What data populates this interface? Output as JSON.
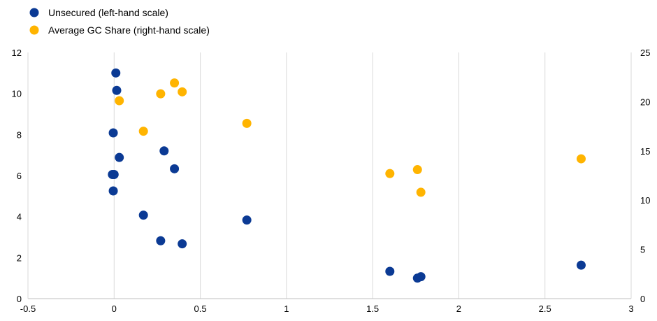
{
  "chart_data": {
    "type": "scatter",
    "legend_position": "top-left",
    "grid": "vertical",
    "x_axis": {
      "min": -0.5,
      "max": 3,
      "ticks": [
        -0.5,
        0,
        0.5,
        1,
        1.5,
        2,
        2.5,
        3
      ],
      "tick_labels": [
        "-0.5",
        "0",
        "0.5",
        "1",
        "1.5",
        "2",
        "2.5",
        "3"
      ]
    },
    "y_left": {
      "min": 0,
      "max": 12,
      "ticks": [
        0,
        2,
        4,
        6,
        8,
        10,
        12
      ],
      "tick_labels": [
        "0",
        "2",
        "4",
        "6",
        "8",
        "10",
        "12"
      ]
    },
    "y_right": {
      "min": 0,
      "max": 25,
      "ticks": [
        0,
        5,
        10,
        15,
        20,
        25
      ],
      "tick_labels": [
        "0",
        "5",
        "10",
        "15",
        "20",
        "25"
      ]
    },
    "series": [
      {
        "name": "Unsecured (left-hand scale)",
        "axis": "left",
        "color": "#0b3a94",
        "points": [
          {
            "x": 0.01,
            "y": 11.0
          },
          {
            "x": 0.015,
            "y": 10.15
          },
          {
            "x": -0.005,
            "y": 8.08
          },
          {
            "x": 0.03,
            "y": 6.88
          },
          {
            "x": -0.01,
            "y": 6.05
          },
          {
            "x": 0.0,
            "y": 6.05
          },
          {
            "x": -0.005,
            "y": 5.25
          },
          {
            "x": 0.29,
            "y": 7.2
          },
          {
            "x": 0.35,
            "y": 6.33
          },
          {
            "x": 0.17,
            "y": 4.07
          },
          {
            "x": 0.27,
            "y": 2.82
          },
          {
            "x": 0.395,
            "y": 2.67
          },
          {
            "x": 0.77,
            "y": 3.83
          },
          {
            "x": 1.6,
            "y": 1.33
          },
          {
            "x": 1.76,
            "y": 1.0
          },
          {
            "x": 1.78,
            "y": 1.07
          },
          {
            "x": 2.71,
            "y": 1.63
          }
        ]
      },
      {
        "name": "Average GC Share (right-hand scale)",
        "axis": "right",
        "color": "#ffb400",
        "points": [
          {
            "x": 0.03,
            "y": 20.1
          },
          {
            "x": 0.27,
            "y": 20.8
          },
          {
            "x": 0.35,
            "y": 21.9
          },
          {
            "x": 0.395,
            "y": 21.0
          },
          {
            "x": 0.17,
            "y": 17.0
          },
          {
            "x": 0.77,
            "y": 17.8
          },
          {
            "x": 1.6,
            "y": 12.7
          },
          {
            "x": 1.76,
            "y": 13.1
          },
          {
            "x": 1.78,
            "y": 10.8
          },
          {
            "x": 2.71,
            "y": 14.2
          }
        ]
      }
    ]
  }
}
